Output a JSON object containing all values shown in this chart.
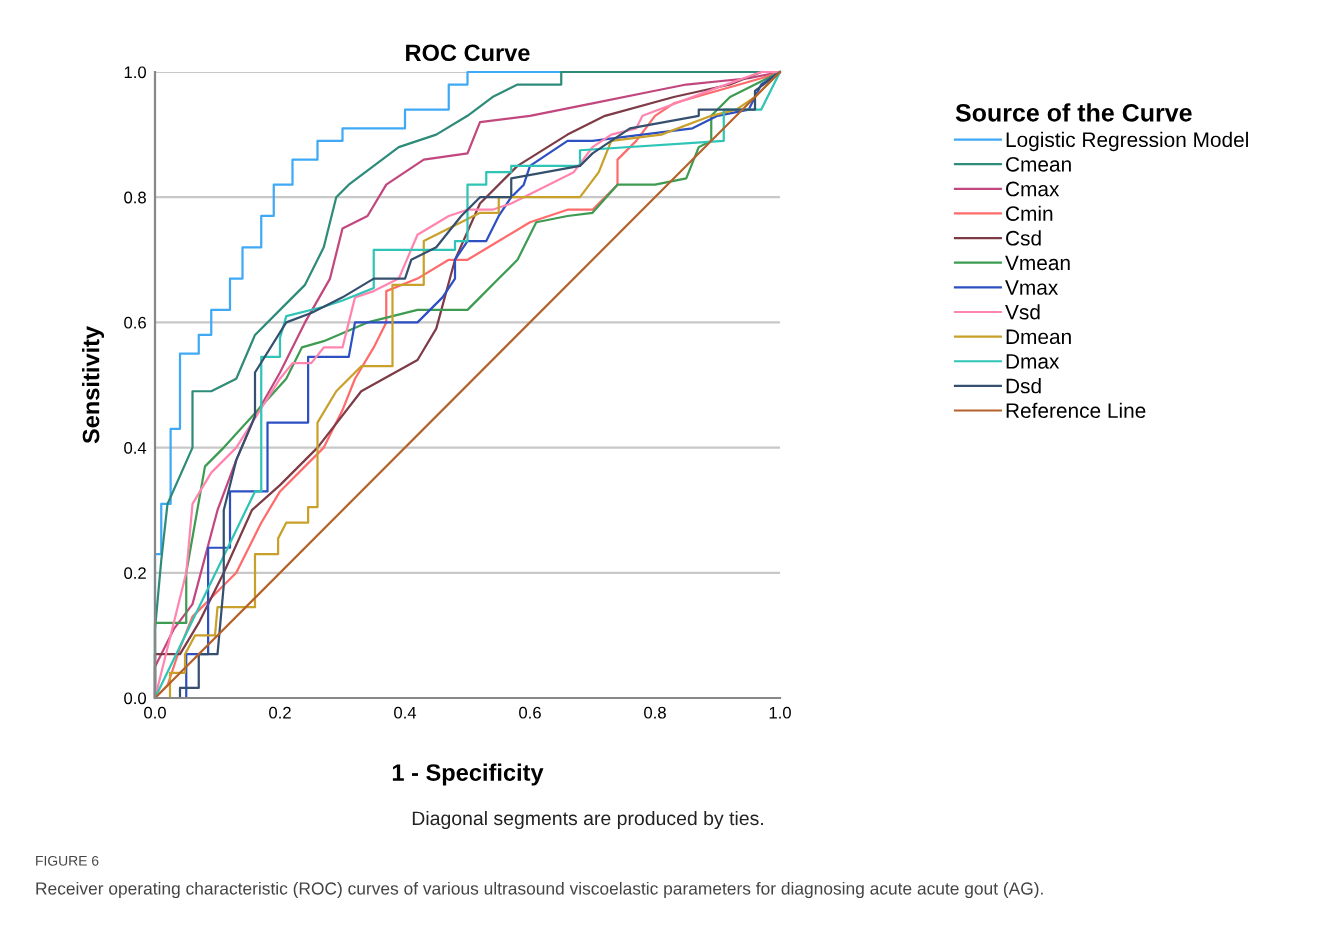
{
  "chart_data": {
    "type": "line",
    "title": "ROC Curve",
    "xlabel": "1 - Specificity",
    "ylabel": "Sensitivity",
    "legend_title": "Source of the Curve",
    "legend": "right",
    "grid": "y",
    "line_style": "solid",
    "xlim": [
      0,
      1
    ],
    "ylim": [
      0,
      1
    ],
    "xticks": [
      {
        "value": 0,
        "label": "0.0"
      },
      {
        "value": 0.2,
        "label": "0.2"
      },
      {
        "value": 0.4,
        "label": "0.4"
      },
      {
        "value": 0.6,
        "label": "0.6"
      },
      {
        "value": 0.8,
        "label": "0.8"
      },
      {
        "value": 1,
        "label": "1.0"
      }
    ],
    "yticks": [
      {
        "value": 0,
        "label": "0.0"
      },
      {
        "value": 0.2,
        "label": "0.2"
      },
      {
        "value": 0.4,
        "label": "0.4"
      },
      {
        "value": 0.6,
        "label": "0.6"
      },
      {
        "value": 0.8,
        "label": "0.8"
      },
      {
        "value": 1,
        "label": "1.0"
      }
    ],
    "annotations": [
      "Diagonal segments are produced by ties.",
      "FIGURE 6",
      "Receiver operating characteristic (ROC) curves of various ultrasound viscoelastic parameters for diagnosing acute acute gout (AG)."
    ],
    "series": [
      {
        "name": "Logistic Regression Model",
        "color": "#3fa9f5",
        "x": [
          0,
          0,
          0.01,
          0.01,
          0.025,
          0.025,
          0.04,
          0.04,
          0.07,
          0.07,
          0.09,
          0.09,
          0.12,
          0.12,
          0.14,
          0.14,
          0.17,
          0.17,
          0.19,
          0.19,
          0.22,
          0.22,
          0.26,
          0.26,
          0.3,
          0.3,
          0.4,
          0.4,
          0.47,
          0.47,
          0.5,
          0.5,
          1
        ],
        "values": [
          0,
          0.23,
          0.23,
          0.31,
          0.31,
          0.43,
          0.43,
          0.55,
          0.55,
          0.58,
          0.58,
          0.62,
          0.62,
          0.67,
          0.67,
          0.72,
          0.72,
          0.77,
          0.77,
          0.82,
          0.82,
          0.86,
          0.86,
          0.89,
          0.89,
          0.91,
          0.91,
          0.94,
          0.94,
          0.98,
          0.98,
          1,
          1
        ]
      },
      {
        "name": "Cmean",
        "color": "#2e8b7a",
        "x": [
          0,
          0,
          0.01,
          0.02,
          0.06,
          0.06,
          0.09,
          0.13,
          0.16,
          0.2,
          0.24,
          0.27,
          0.29,
          0.31,
          0.35,
          0.39,
          0.45,
          0.5,
          0.54,
          0.58,
          0.65,
          0.65,
          1
        ],
        "values": [
          0,
          0.11,
          0.22,
          0.31,
          0.4,
          0.49,
          0.49,
          0.51,
          0.58,
          0.62,
          0.66,
          0.72,
          0.8,
          0.82,
          0.85,
          0.88,
          0.9,
          0.93,
          0.96,
          0.98,
          0.98,
          1,
          1
        ]
      },
      {
        "name": "Cmax",
        "color": "#c2477e",
        "x": [
          0,
          0,
          0.03,
          0.06,
          0.1,
          0.13,
          0.16,
          0.2,
          0.24,
          0.28,
          0.3,
          0.34,
          0.37,
          0.4,
          0.43,
          0.5,
          0.52,
          0.6,
          0.7,
          0.8,
          0.85,
          0.95,
          1
        ],
        "values": [
          0,
          0.05,
          0.11,
          0.15,
          0.3,
          0.38,
          0.45,
          0.52,
          0.6,
          0.67,
          0.75,
          0.77,
          0.82,
          0.84,
          0.86,
          0.87,
          0.92,
          0.93,
          0.95,
          0.97,
          0.98,
          0.99,
          1
        ]
      },
      {
        "name": "Cmin",
        "color": "#ff6b6b",
        "x": [
          0,
          0.02,
          0.04,
          0.06,
          0.1,
          0.13,
          0.17,
          0.2,
          0.24,
          0.27,
          0.3,
          0.32,
          0.35,
          0.37,
          0.37,
          0.42,
          0.47,
          0.5,
          0.55,
          0.6,
          0.66,
          0.7,
          0.74,
          0.74,
          0.77,
          0.8,
          0.83,
          0.9,
          0.97,
          1
        ],
        "values": [
          0,
          0.02,
          0.08,
          0.13,
          0.17,
          0.2,
          0.28,
          0.33,
          0.37,
          0.4,
          0.46,
          0.51,
          0.56,
          0.6,
          0.65,
          0.67,
          0.7,
          0.7,
          0.73,
          0.76,
          0.78,
          0.78,
          0.82,
          0.86,
          0.89,
          0.93,
          0.95,
          0.97,
          0.99,
          1
        ]
      },
      {
        "name": "Csd",
        "color": "#7d3b47",
        "x": [
          0,
          0,
          0.04,
          0.07,
          0.11,
          0.155,
          0.2,
          0.26,
          0.33,
          0.42,
          0.45,
          0.48,
          0.52,
          0.58,
          0.66,
          0.72,
          0.83,
          0.92,
          0.97,
          1
        ],
        "values": [
          0,
          0.07,
          0.07,
          0.12,
          0.2,
          0.3,
          0.34,
          0.4,
          0.49,
          0.54,
          0.59,
          0.7,
          0.79,
          0.85,
          0.9,
          0.93,
          0.96,
          0.98,
          1,
          1
        ]
      },
      {
        "name": "Vmean",
        "color": "#3d9b52",
        "x": [
          0,
          0,
          0.05,
          0.05,
          0.08,
          0.11,
          0.21,
          0.235,
          0.27,
          0.34,
          0.42,
          0.5,
          0.52,
          0.55,
          0.58,
          0.61,
          0.66,
          0.7,
          0.74,
          0.8,
          0.85,
          0.87,
          0.89,
          0.89,
          0.92,
          1
        ],
        "values": [
          0,
          0.12,
          0.12,
          0.2,
          0.37,
          0.4,
          0.51,
          0.56,
          0.57,
          0.6,
          0.62,
          0.62,
          0.64,
          0.67,
          0.7,
          0.76,
          0.77,
          0.775,
          0.82,
          0.82,
          0.83,
          0.88,
          0.89,
          0.93,
          0.96,
          1
        ]
      },
      {
        "name": "Vmax",
        "color": "#2c4fc2",
        "x": [
          0,
          0.05,
          0.05,
          0.085,
          0.085,
          0.12,
          0.12,
          0.18,
          0.18,
          0.245,
          0.245,
          0.31,
          0.32,
          0.32,
          0.42,
          0.44,
          0.46,
          0.48,
          0.48,
          0.5,
          0.53,
          0.55,
          0.57,
          0.59,
          0.6,
          0.63,
          0.66,
          0.7,
          0.78,
          0.86,
          0.9,
          0.95,
          0.97,
          1
        ],
        "values": [
          0,
          0,
          0.07,
          0.07,
          0.24,
          0.24,
          0.33,
          0.33,
          0.44,
          0.44,
          0.545,
          0.545,
          0.6,
          0.6,
          0.6,
          0.62,
          0.64,
          0.67,
          0.7,
          0.73,
          0.73,
          0.77,
          0.8,
          0.82,
          0.85,
          0.87,
          0.89,
          0.89,
          0.9,
          0.91,
          0.93,
          0.94,
          0.98,
          1
        ]
      },
      {
        "name": "Vsd",
        "color": "#ff85b0",
        "x": [
          0,
          0.05,
          0.06,
          0.09,
          0.13,
          0.2,
          0.22,
          0.25,
          0.27,
          0.3,
          0.32,
          0.35,
          0.39,
          0.42,
          0.47,
          0.5,
          0.54,
          0.57,
          0.63,
          0.67,
          0.7,
          0.73,
          0.77,
          0.78,
          0.9,
          0.97,
          1
        ],
        "values": [
          0,
          0.2,
          0.31,
          0.36,
          0.4,
          0.51,
          0.535,
          0.535,
          0.56,
          0.56,
          0.64,
          0.65,
          0.67,
          0.74,
          0.77,
          0.78,
          0.78,
          0.79,
          0.82,
          0.84,
          0.88,
          0.9,
          0.91,
          0.93,
          0.975,
          1,
          1
        ]
      },
      {
        "name": "Dmean",
        "color": "#c8a02a",
        "x": [
          0.024,
          0.024,
          0.048,
          0.048,
          0.064,
          0.096,
          0.1,
          0.16,
          0.16,
          0.197,
          0.197,
          0.21,
          0.245,
          0.245,
          0.26,
          0.26,
          0.29,
          0.33,
          0.38,
          0.38,
          0.43,
          0.43,
          0.52,
          0.55,
          0.55,
          0.68,
          0.71,
          0.73,
          0.81,
          0.89,
          0.93,
          0.96,
          1
        ],
        "values": [
          0,
          0.04,
          0.04,
          0.07,
          0.1,
          0.1,
          0.145,
          0.145,
          0.23,
          0.23,
          0.255,
          0.28,
          0.28,
          0.305,
          0.305,
          0.44,
          0.49,
          0.53,
          0.53,
          0.66,
          0.66,
          0.73,
          0.775,
          0.775,
          0.8,
          0.8,
          0.84,
          0.89,
          0.9,
          0.93,
          0.94,
          0.96,
          1
        ]
      },
      {
        "name": "Dmax",
        "color": "#2ec4b6",
        "x": [
          0,
          0.16,
          0.17,
          0.17,
          0.2,
          0.2,
          0.21,
          0.27,
          0.3,
          0.35,
          0.35,
          0.48,
          0.48,
          0.5,
          0.5,
          0.53,
          0.53,
          0.57,
          0.57,
          0.68,
          0.68,
          0.91,
          0.91,
          0.97,
          1
        ],
        "values": [
          0,
          0.33,
          0.33,
          0.545,
          0.545,
          0.575,
          0.61,
          0.625,
          0.635,
          0.655,
          0.716,
          0.716,
          0.73,
          0.73,
          0.82,
          0.82,
          0.84,
          0.84,
          0.85,
          0.85,
          0.875,
          0.89,
          0.94,
          0.94,
          1
        ]
      },
      {
        "name": "Dsd",
        "color": "#34506e",
        "x": [
          0.04,
          0.04,
          0.07,
          0.07,
          0.1,
          0.11,
          0.11,
          0.13,
          0.16,
          0.16,
          0.21,
          0.25,
          0.27,
          0.3,
          0.35,
          0.4,
          0.41,
          0.45,
          0.49,
          0.52,
          0.57,
          0.57,
          0.68,
          0.7,
          0.76,
          0.87,
          0.87,
          0.96,
          0.96,
          1
        ],
        "values": [
          0,
          0.016,
          0.016,
          0.07,
          0.07,
          0.18,
          0.3,
          0.38,
          0.45,
          0.52,
          0.6,
          0.615,
          0.625,
          0.64,
          0.67,
          0.67,
          0.7,
          0.72,
          0.77,
          0.8,
          0.8,
          0.83,
          0.85,
          0.87,
          0.91,
          0.93,
          0.94,
          0.94,
          0.97,
          1
        ]
      },
      {
        "name": "Reference Line",
        "color": "#b5622a",
        "x": [
          0,
          1
        ],
        "values": [
          0,
          1
        ]
      }
    ]
  }
}
